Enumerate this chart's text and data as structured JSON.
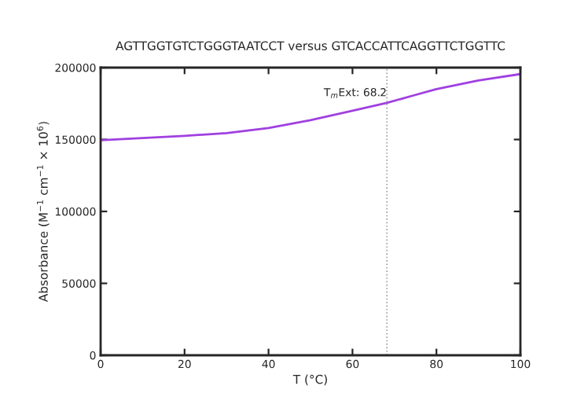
{
  "chart_data": {
    "type": "line",
    "title": "AGTTGGTGTCTGGGTAATCCT versus GTCACCATTCAGGTTCTGGTTC",
    "xlabel": "T (°C)",
    "ylabel": "Absorbance (M$^{−1}$ cm$^{−1}$ × 10$^{6}$)",
    "x": [
      0,
      10,
      20,
      30,
      40,
      50,
      60,
      68.2,
      75,
      80,
      90,
      100
    ],
    "series": [
      {
        "color": "#a040e0",
        "values": [
          149500,
          151000,
          152500,
          154500,
          158000,
          163500,
          170000,
          175500,
          181000,
          185000,
          191000,
          195500
        ]
      }
    ],
    "xlim": [
      0,
      100
    ],
    "xticks": [
      0,
      20,
      40,
      60,
      80,
      100
    ],
    "ylim": [
      0,
      200000
    ],
    "yticks": [
      0,
      50000,
      100000,
      150000,
      200000
    ],
    "ref_lines": [
      {
        "axis": "x",
        "value": 68.2,
        "label": "T$_{m}$Ext: 68.2",
        "color": "#a0a0a0",
        "line_style": "dotted"
      }
    ],
    "grid": false,
    "legend": false
  }
}
